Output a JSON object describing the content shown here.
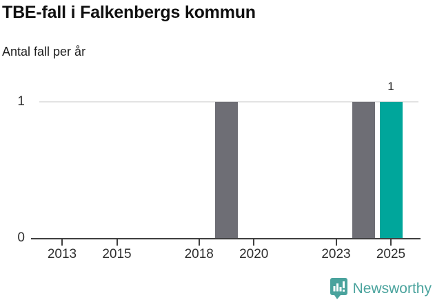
{
  "title": "TBE-fall i Falkenbergs kommun",
  "subtitle": "Antal fall per år",
  "chart_data": {
    "type": "bar",
    "title": "TBE-fall i Falkenbergs kommun",
    "subtitle": "Antal fall per år",
    "xlabel": "",
    "ylabel": "Antal fall per år",
    "ylim": [
      0,
      1
    ],
    "yticks": [
      0,
      1
    ],
    "xticks": [
      2013,
      2015,
      2018,
      2020,
      2023,
      2025
    ],
    "x_range": [
      2012,
      2026
    ],
    "grid": "horizontal-at-1-only",
    "legend": "none",
    "bars": [
      {
        "year": 2019,
        "value": 1,
        "color_key": "gray",
        "label": ""
      },
      {
        "year": 2024,
        "value": 1,
        "color_key": "gray",
        "label": ""
      },
      {
        "year": 2025,
        "value": 1,
        "color_key": "teal",
        "label": "1"
      }
    ],
    "colors": {
      "gray": "#6e6e75",
      "teal": "#00a69b",
      "axis": "#3f3f3f",
      "grid": "#e3e3e3"
    }
  },
  "branding": {
    "logo_text": "Newsworthy",
    "logo_color": "#4aa39d",
    "icon": "newsworthy-bar-chart-bubble-icon"
  }
}
